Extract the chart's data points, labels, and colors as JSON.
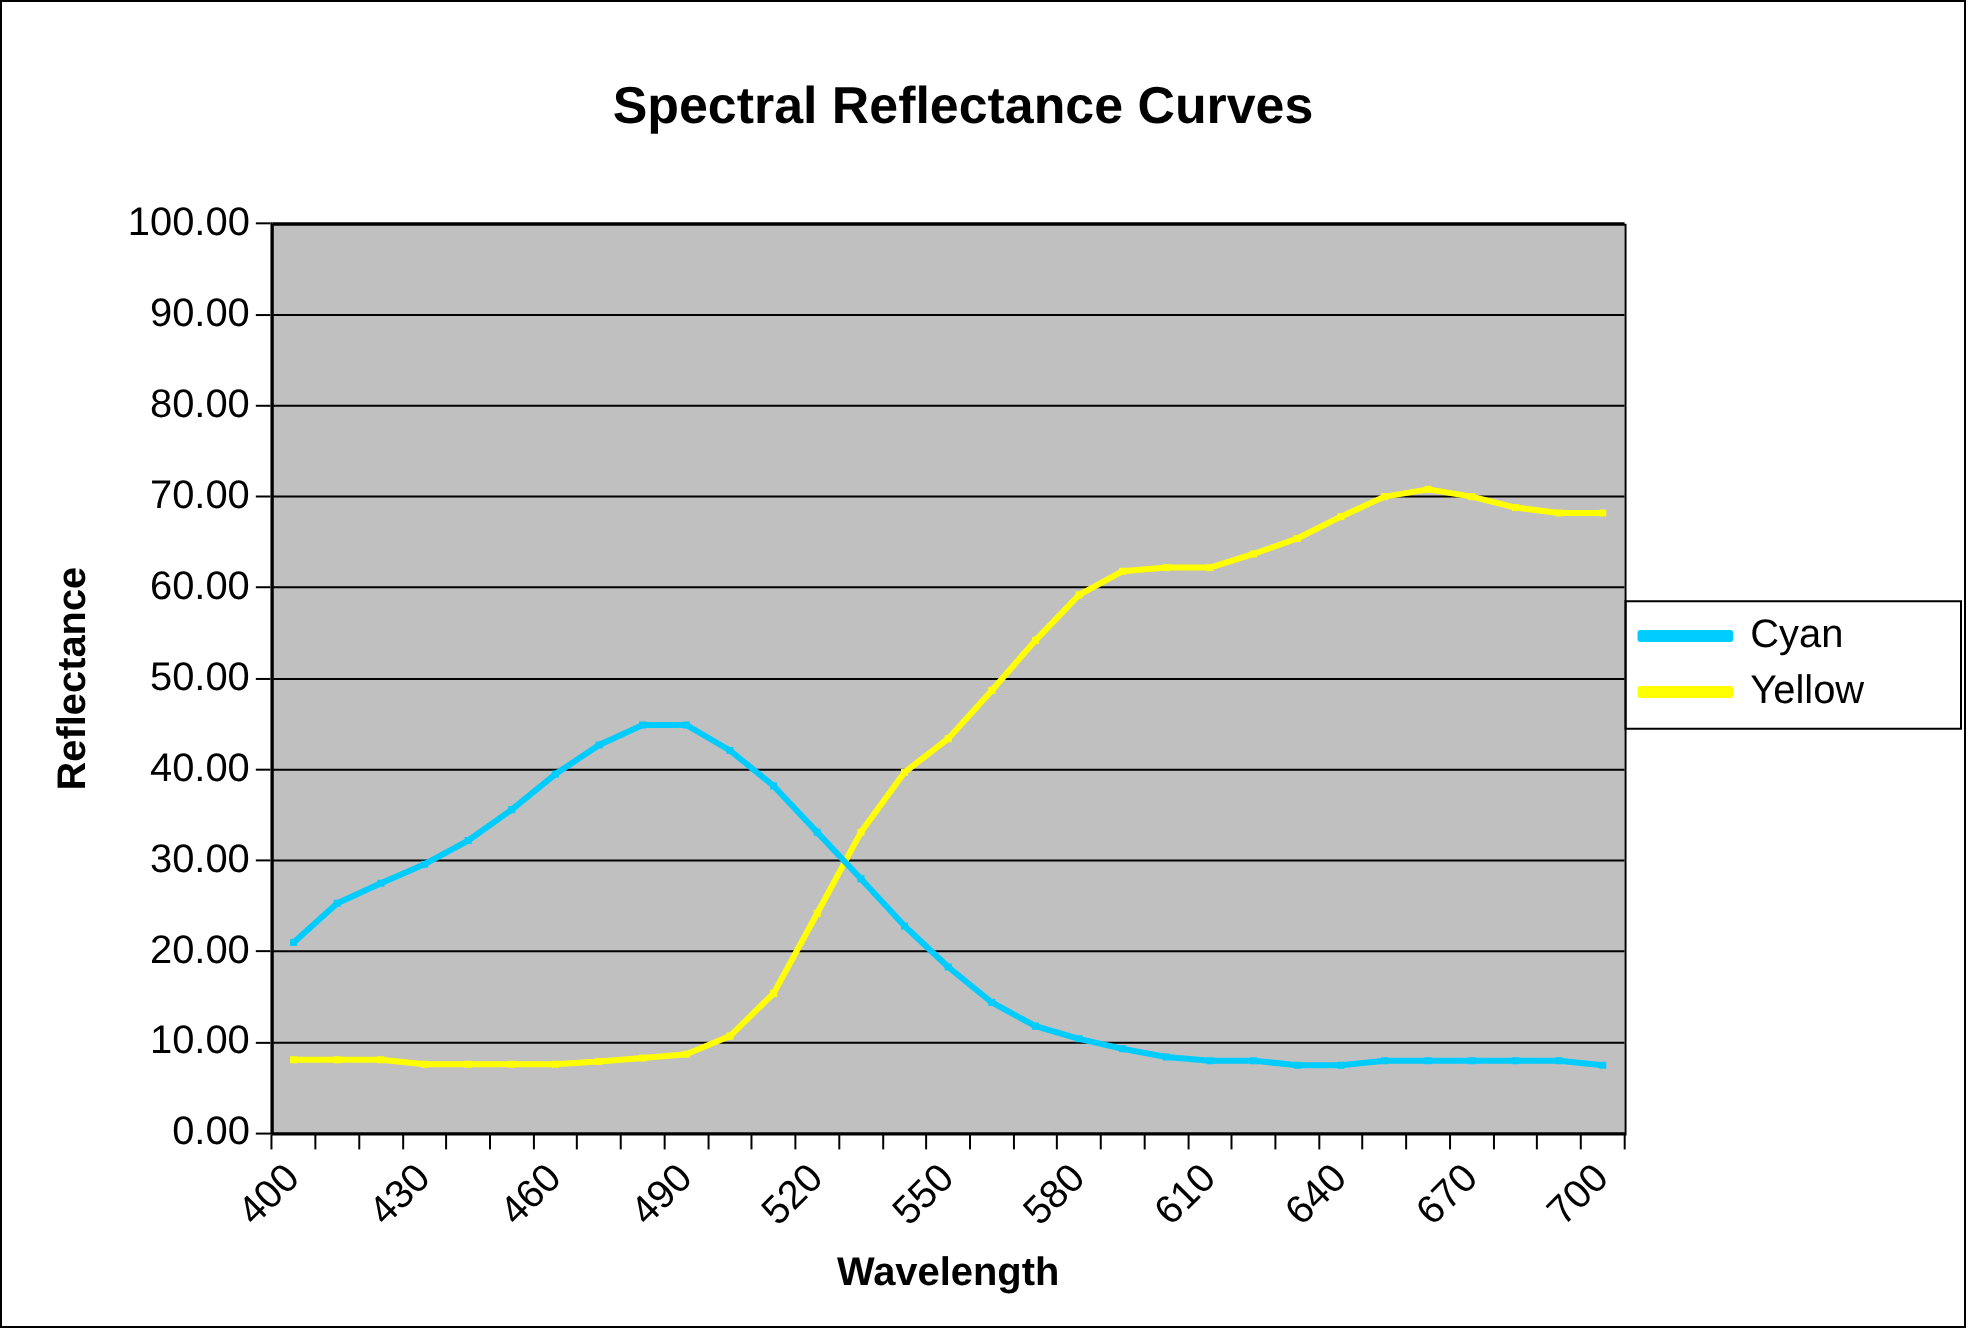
{
  "chart_data": {
    "type": "line",
    "title": "Spectral Reflectance Curves",
    "xlabel": "Wavelength",
    "ylabel": "Reflectance",
    "categories": [
      "400",
      null,
      null,
      "430",
      null,
      null,
      "460",
      null,
      null,
      "490",
      null,
      null,
      "520",
      null,
      null,
      "550",
      null,
      null,
      "580",
      null,
      null,
      "610",
      null,
      null,
      "640",
      null,
      null,
      "670",
      null,
      null,
      "700"
    ],
    "series": [
      {
        "name": "Cyan",
        "color": "#00ccff",
        "values": [
          21.0,
          25.3,
          27.5,
          29.6,
          32.2,
          35.6,
          39.5,
          42.7,
          44.9,
          44.9,
          42.1,
          38.2,
          33.1,
          28.0,
          22.8,
          18.3,
          14.4,
          11.8,
          10.4,
          9.3,
          8.4,
          8.0,
          8.0,
          7.5,
          7.5,
          8.0,
          8.0,
          8.0,
          8.0,
          8.0,
          7.5
        ]
      },
      {
        "name": "Yellow",
        "color": "#ffff00",
        "values": [
          8.1,
          8.1,
          8.1,
          7.6,
          7.6,
          7.6,
          7.6,
          7.9,
          8.3,
          8.7,
          10.7,
          15.4,
          24.2,
          33.1,
          39.7,
          43.4,
          48.7,
          54.2,
          59.2,
          61.8,
          62.2,
          62.2,
          63.7,
          65.4,
          67.8,
          70.0,
          70.8,
          70.0,
          68.8,
          68.2,
          68.2
        ]
      }
    ],
    "ylim": [
      0,
      100
    ],
    "yticks": [
      {
        "value": 0,
        "label": "0.00"
      },
      {
        "value": 10,
        "label": "10.00"
      },
      {
        "value": 20,
        "label": "20.00"
      },
      {
        "value": 30,
        "label": "30.00"
      },
      {
        "value": 40,
        "label": "40.00"
      },
      {
        "value": 50,
        "label": "50.00"
      },
      {
        "value": 60,
        "label": "60.00"
      },
      {
        "value": 70,
        "label": "70.00"
      },
      {
        "value": 80,
        "label": "80.00"
      },
      {
        "value": 90,
        "label": "90.00"
      },
      {
        "value": 100,
        "label": "100.00"
      }
    ],
    "grid": "y",
    "legend": "right",
    "marker": "square",
    "line_style": "solid"
  }
}
